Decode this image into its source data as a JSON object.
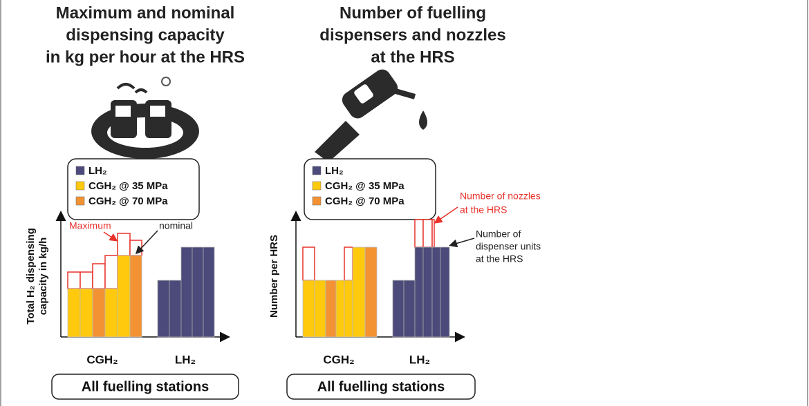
{
  "panels": [
    {
      "title_lines": [
        "Maximum and nominal",
        "dispensing capacity",
        "in kg per hour at the HRS"
      ],
      "legend": [
        "LH₂",
        "CGH₂ @ 35 MPa",
        "CGH₂ @ 70 MPa"
      ],
      "y_axis_label": [
        "Total H₂ dispensing",
        "capacity in kg/h"
      ],
      "annotations": [
        {
          "lines": [
            "Maximum"
          ]
        },
        {
          "lines": [
            "nominal"
          ]
        }
      ],
      "x_labels": [
        "CGH₂",
        "LH₂"
      ],
      "footer": "All fuelling stations"
    },
    {
      "title_lines": [
        "Number of fuelling",
        "dispensers and nozzles",
        "at the HRS"
      ],
      "legend": [
        "LH₂",
        "CGH₂ @ 35 MPa",
        "CGH₂ @ 70 MPa"
      ],
      "y_axis_label": [
        "Number per HRS"
      ],
      "annotations": [
        {
          "lines": [
            "Number of nozzles",
            "at the HRS"
          ]
        },
        {
          "lines": [
            "Number of",
            "dispenser units",
            "at the HRS"
          ]
        }
      ],
      "x_labels": [
        "CGH₂",
        "LH₂"
      ],
      "footer": "All fuelling stations"
    }
  ]
}
